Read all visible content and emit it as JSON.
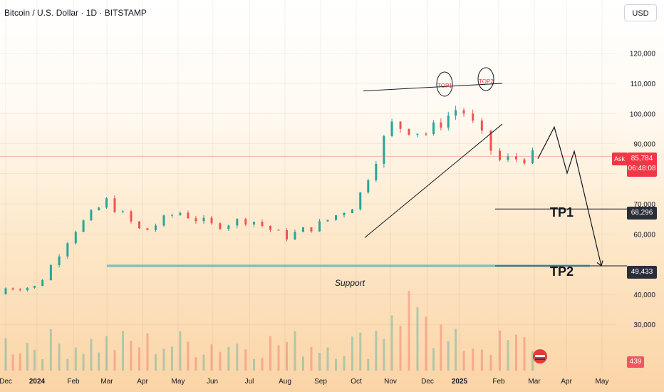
{
  "header": {
    "title": "Bitcoin / U.S. Dollar · 1D · BITSTAMP",
    "currency_button": "USD"
  },
  "price_axis": {
    "ticks": [
      "120,000",
      "110,000",
      "100,000",
      "90,000",
      "70,000",
      "60,000",
      "40,000",
      "30,000"
    ],
    "ask_label": "Ask",
    "current_price": "85,784",
    "countdown": "06:48:08",
    "tp1_price": "68,296",
    "tp2_price": "49,433",
    "volume_value": "439"
  },
  "time_axis": {
    "labels": [
      "Dec",
      "2024",
      "Feb",
      "Mar",
      "Apr",
      "May",
      "Jun",
      "Jul",
      "Aug",
      "Sep",
      "Oct",
      "Nov",
      "Dec",
      "2025",
      "Feb",
      "Mar",
      "Apr",
      "May"
    ]
  },
  "annotations": {
    "top1": "TOP1",
    "top2": "TOP2",
    "tp1": "TP1",
    "tp2": "TP2",
    "support": "Support"
  },
  "colors": {
    "up": "#26a69a",
    "down": "#ef5350",
    "ask": "#f23645",
    "tp_box": "#2a2e39",
    "support_line": "#4fb3bf"
  },
  "chart_data": {
    "type": "candlestick",
    "symbol": "Bitcoin / U.S. Dollar",
    "interval": "1D",
    "exchange": "BITSTAMP",
    "ylim": [
      22000,
      127000
    ],
    "monthly_closes": [
      {
        "x": "Dec 2023",
        "y": 42000
      },
      {
        "x": "Jan 2024",
        "y": 42500
      },
      {
        "x": "Feb 2024",
        "y": 61000
      },
      {
        "x": "Mar 2024",
        "y": 71000
      },
      {
        "x": "Apr 2024",
        "y": 60500
      },
      {
        "x": "May 2024",
        "y": 67500
      },
      {
        "x": "Jun 2024",
        "y": 62700
      },
      {
        "x": "Jul 2024",
        "y": 65000
      },
      {
        "x": "Aug 2024",
        "y": 59000
      },
      {
        "x": "Sep 2024",
        "y": 63300
      },
      {
        "x": "Oct 2024",
        "y": 70200
      },
      {
        "x": "Nov 2024",
        "y": 96400
      },
      {
        "x": "Dec 2024",
        "y": 93400
      },
      {
        "x": "Jan 2025",
        "y": 102400
      },
      {
        "x": "Feb 2025",
        "y": 84300
      },
      {
        "x": "Mar 2025",
        "y": 85784
      }
    ],
    "current_price": 85784,
    "support_level": 49433,
    "targets": [
      {
        "name": "TP1",
        "value": 68296
      },
      {
        "name": "TP2",
        "value": 49433
      }
    ]
  }
}
